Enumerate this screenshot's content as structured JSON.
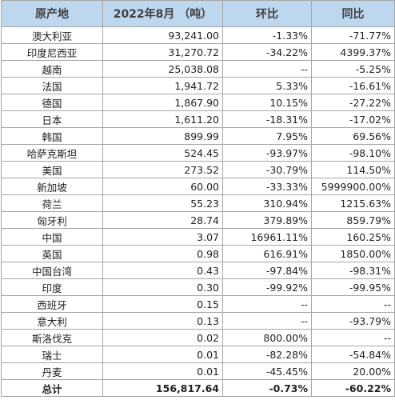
{
  "table": {
    "headers": [
      "原产地",
      "2022年8月 （吨）",
      "环比",
      "同比"
    ],
    "rows": [
      [
        "澳大利亚",
        "93,241.00",
        "-1.33%",
        "-71.77%"
      ],
      [
        "印度尼西亚",
        "31,270.72",
        "-34.22%",
        "4399.37%"
      ],
      [
        "越南",
        "25,038.08",
        "--",
        "-5.25%"
      ],
      [
        "法国",
        "1,941.72",
        "5.33%",
        "-16.61%"
      ],
      [
        "德国",
        "1,867.90",
        "10.15%",
        "-27.22%"
      ],
      [
        "日本",
        "1,611.20",
        "-18.31%",
        "-17.02%"
      ],
      [
        "韩国",
        "899.99",
        "7.95%",
        "69.56%"
      ],
      [
        "哈萨克斯坦",
        "524.45",
        "-93.97%",
        "-98.10%"
      ],
      [
        "美国",
        "273.52",
        "-30.79%",
        "114.50%"
      ],
      [
        "新加坡",
        "60.00",
        "-33.33%",
        "5999900.00%"
      ],
      [
        "荷兰",
        "55.23",
        "310.94%",
        "1215.63%"
      ],
      [
        "匈牙利",
        "28.74",
        "379.89%",
        "859.79%"
      ],
      [
        "中国",
        "3.07",
        "16961.11%",
        "160.25%"
      ],
      [
        "英国",
        "0.98",
        "616.91%",
        "1850.00%"
      ],
      [
        "中国台湾",
        "0.43",
        "-97.84%",
        "-98.31%"
      ],
      [
        "印度",
        "0.30",
        "-99.92%",
        "-99.95%"
      ],
      [
        "西班牙",
        "0.15",
        "--",
        "--"
      ],
      [
        "意大利",
        "0.13",
        "--",
        "-93.79%"
      ],
      [
        "斯洛伐克",
        "0.02",
        "800.00%",
        "--"
      ],
      [
        "瑞士",
        "0.01",
        "-82.28%",
        "-54.84%"
      ],
      [
        "丹麦",
        "0.01",
        "-45.45%",
        "20.00%"
      ]
    ],
    "total": [
      "总计",
      "156,817.64",
      "-0.73%",
      "-60.22%"
    ]
  },
  "colors": {
    "header_bg": "#bdd7ee",
    "border": "#a6a6a6"
  }
}
